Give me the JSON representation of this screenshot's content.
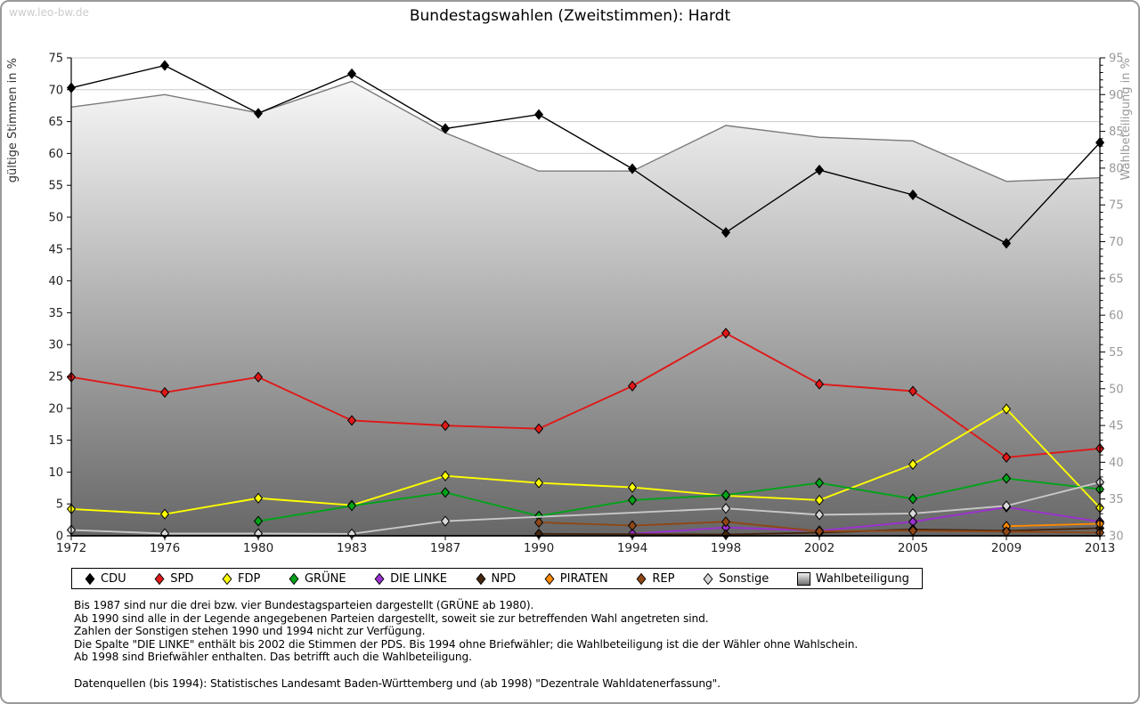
{
  "page": {
    "watermark": "www.leo-bw.de"
  },
  "chart_data": {
    "type": "line",
    "title": "Bundestagswahlen (Zweitstimmen): Hardt",
    "categories": [
      "1972",
      "1976",
      "1980",
      "1983",
      "1987",
      "1990",
      "1994",
      "1998",
      "2002",
      "2005",
      "2009",
      "2013"
    ],
    "left_axis": {
      "label": "gültige Stimmen in %",
      "min": 0,
      "max": 75,
      "tick_step": 5
    },
    "right_axis": {
      "label": "Wahlbeteiligung in %",
      "min": 30,
      "max": 95,
      "tick_step": 5,
      "minor_step": 1
    },
    "grid": "horizontal",
    "legend_position": "bottom",
    "series": [
      {
        "name": "CDU",
        "color": "#000000",
        "axis": "left",
        "values": [
          70.3,
          73.8,
          66.3,
          72.5,
          63.9,
          66.1,
          57.6,
          47.6,
          57.4,
          53.5,
          45.9,
          61.7
        ]
      },
      {
        "name": "SPD",
        "color": "#e01818",
        "axis": "left",
        "values": [
          24.9,
          22.5,
          24.9,
          18.1,
          17.3,
          16.8,
          23.5,
          31.8,
          23.8,
          22.7,
          12.3,
          13.7
        ]
      },
      {
        "name": "FDP",
        "color": "#ffff00",
        "axis": "left",
        "values": [
          4.2,
          3.4,
          5.9,
          4.8,
          9.4,
          8.3,
          7.6,
          6.3,
          5.6,
          11.2,
          19.9,
          4.4
        ]
      },
      {
        "name": "GRÜNE",
        "color": "#00a319",
        "axis": "left",
        "values": [
          null,
          null,
          2.3,
          4.7,
          6.8,
          3.1,
          5.6,
          6.4,
          8.3,
          5.8,
          9.0,
          7.3
        ]
      },
      {
        "name": "DIE LINKE",
        "color": "#9b30d0",
        "axis": "left",
        "values": [
          null,
          null,
          null,
          null,
          null,
          null,
          0.3,
          1.3,
          0.8,
          2.2,
          4.5,
          2.2
        ]
      },
      {
        "name": "NPD",
        "color": "#45260e",
        "axis": "left",
        "values": [
          null,
          null,
          null,
          null,
          null,
          0.3,
          null,
          0.2,
          0.5,
          1.0,
          0.8,
          1.2
        ]
      },
      {
        "name": "PIRATEN",
        "color": "#ff8a00",
        "axis": "left",
        "values": [
          null,
          null,
          null,
          null,
          null,
          null,
          null,
          null,
          null,
          null,
          1.5,
          1.9
        ]
      },
      {
        "name": "REP",
        "color": "#8f4716",
        "axis": "left",
        "values": [
          null,
          null,
          null,
          null,
          null,
          2.1,
          1.6,
          2.2,
          0.7,
          0.8,
          0.65,
          0.5
        ]
      },
      {
        "name": "Sonstige",
        "color": "#c8c8c8",
        "marker_fill": "#d9d9d9",
        "axis": "left",
        "values": [
          0.9,
          0.35,
          0.35,
          0.3,
          2.3,
          null,
          null,
          4.3,
          3.3,
          3.5,
          4.7,
          8.4
        ]
      }
    ],
    "turnout_series": {
      "name": "Wahlbeteiligung",
      "axis": "right",
      "style": "area-gradient",
      "edge_color": "#7a7a7a",
      "fill_top": "#ffffff",
      "fill_bottom": "#676767",
      "values": [
        88.3,
        90.0,
        87.5,
        91.8,
        84.8,
        79.6,
        79.6,
        85.8,
        84.2,
        83.7,
        78.2,
        78.7
      ]
    },
    "colors": {
      "grid": "#cccccc",
      "axis": "#000000",
      "right_axis_text": "#999999",
      "left_axis_text": "#222222"
    }
  },
  "footnotes": {
    "lines": [
      "Bis 1987 sind nur die drei bzw. vier Bundestagsparteien dargestellt (GRÜNE ab 1980).",
      "Ab 1990 sind alle in der Legende angegebenen Parteien dargestellt, soweit sie zur betreffenden Wahl angetreten sind.",
      "Zahlen der Sonstigen stehen 1990 und 1994 nicht zur Verfügung.",
      "Die Spalte \"DIE LINKE\" enthält bis 2002 die Stimmen der PDS. Bis 1994 ohne Briefwähler; die Wahlbeteiligung ist die der Wähler ohne Wahlschein.",
      "Ab 1998 sind Briefwähler enthalten. Das betrifft auch die Wahlbeteiligung.",
      "",
      "Datenquellen (bis 1994): Statistisches Landesamt Baden-Württemberg und (ab 1998) \"Dezentrale Wahldatenerfassung\"."
    ]
  }
}
